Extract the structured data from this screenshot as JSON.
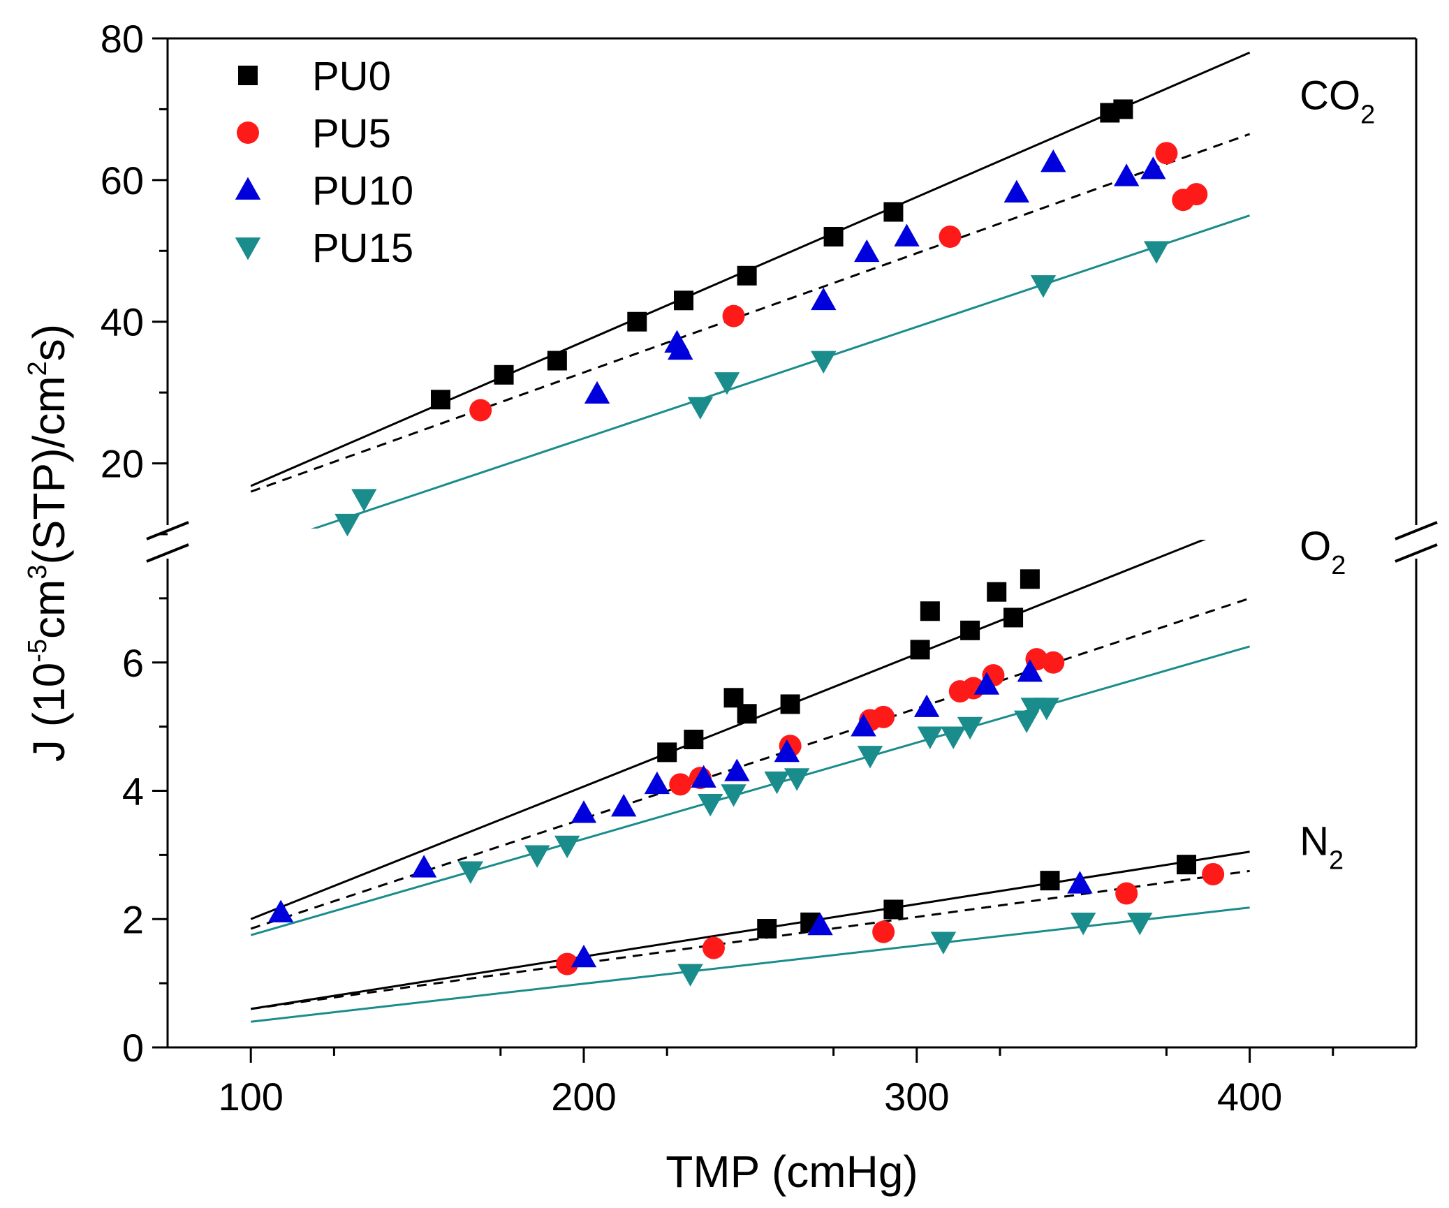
{
  "chart_data": {
    "type": "scatter",
    "title": "",
    "xlabel": "TMP (cmHg)",
    "ylabel": {
      "prefix": "J (10",
      "exp1": "-5",
      "mid1": "cm",
      "exp2": "3",
      "mid2": "(STP)/cm",
      "exp3": "2",
      "suffix": "s)"
    },
    "xlim": [
      75,
      450
    ],
    "xticks": [
      100,
      200,
      300,
      400
    ],
    "xtick_labels": [
      "100",
      "200",
      "300",
      "400"
    ],
    "broken_axis": true,
    "lower_ylim": [
      0,
      8
    ],
    "lower_yticks": [
      0,
      2,
      4,
      6
    ],
    "lower_ytick_labels": [
      "0",
      "2",
      "4",
      "6"
    ],
    "upper_ylim": [
      10,
      80
    ],
    "upper_yticks": [
      20,
      40,
      60,
      80
    ],
    "upper_ytick_labels": [
      "20",
      "40",
      "60",
      "80"
    ],
    "legend_position": "top-left",
    "gas_labels": [
      {
        "text": "CO",
        "sub": "2",
        "panel": "upper",
        "x": 415,
        "y": 70
      },
      {
        "text": "O",
        "sub": "2",
        "panel": "lower",
        "x": 415,
        "y": 7.6
      },
      {
        "text": "N",
        "sub": "2",
        "panel": "lower",
        "x": 415,
        "y": 3.0
      }
    ],
    "series": [
      {
        "name": "PU0",
        "marker": "square",
        "color": "#000000",
        "points": {
          "CO2": [
            [
              157,
              29
            ],
            [
              176,
              32.5
            ],
            [
              192,
              34.5
            ],
            [
              216,
              40
            ],
            [
              230,
              43
            ],
            [
              249,
              46.5
            ],
            [
              275,
              52
            ],
            [
              293,
              55.5
            ],
            [
              358,
              69.5
            ],
            [
              362,
              70
            ]
          ],
          "O2": [
            [
              225,
              4.6
            ],
            [
              233,
              4.8
            ],
            [
              245,
              5.45
            ],
            [
              249,
              5.2
            ],
            [
              262,
              5.35
            ],
            [
              301,
              6.2
            ],
            [
              304,
              6.8
            ],
            [
              316,
              6.5
            ],
            [
              324,
              7.1
            ],
            [
              329,
              6.7
            ],
            [
              334,
              7.3
            ]
          ],
          "N2": [
            [
              255,
              1.85
            ],
            [
              268,
              1.95
            ],
            [
              293,
              2.15
            ],
            [
              340,
              2.6
            ],
            [
              381,
              2.85
            ]
          ]
        }
      },
      {
        "name": "PU5",
        "marker": "circle",
        "color": "#ff1a1a",
        "points": {
          "CO2": [
            [
              169,
              27.5
            ],
            [
              245,
              40.8
            ],
            [
              310,
              52
            ],
            [
              375,
              63.8
            ],
            [
              380,
              57.2
            ],
            [
              384,
              58
            ]
          ],
          "O2": [
            [
              229,
              4.1
            ],
            [
              235,
              4.2
            ],
            [
              262,
              4.7
            ],
            [
              286,
              5.1
            ],
            [
              290,
              5.15
            ],
            [
              313,
              5.55
            ],
            [
              317,
              5.6
            ],
            [
              323,
              5.8
            ],
            [
              336,
              6.05
            ],
            [
              341,
              6.0
            ]
          ],
          "N2": [
            [
              195,
              1.3
            ],
            [
              239,
              1.55
            ],
            [
              290,
              1.8
            ],
            [
              363,
              2.4
            ],
            [
              389,
              2.7
            ]
          ]
        }
      },
      {
        "name": "PU10",
        "marker": "triangle-up",
        "color": "#0000dd",
        "points": {
          "CO2": [
            [
              204,
              29.8
            ],
            [
              228,
              37
            ],
            [
              229,
              36
            ],
            [
              272,
              43
            ],
            [
              285,
              49.8
            ],
            [
              297,
              52
            ],
            [
              330,
              58.2
            ],
            [
              341,
              62.5
            ],
            [
              363,
              60.5
            ],
            [
              371,
              61.5
            ]
          ],
          "O2": [
            [
              109,
              2.1
            ],
            [
              152,
              2.8
            ],
            [
              200,
              3.65
            ],
            [
              212,
              3.75
            ],
            [
              222,
              4.1
            ],
            [
              236,
              4.2
            ],
            [
              246,
              4.3
            ],
            [
              261,
              4.6
            ],
            [
              284,
              5.0
            ],
            [
              303,
              5.3
            ],
            [
              321,
              5.65
            ],
            [
              334,
              5.85
            ]
          ],
          "N2": [
            [
              200,
              1.4
            ],
            [
              271,
              1.9
            ],
            [
              349,
              2.55
            ]
          ]
        }
      },
      {
        "name": "PU15",
        "marker": "triangle-down",
        "color": "#1a8c8c",
        "points": {
          "CO2": [
            [
              129,
              11.5
            ],
            [
              134,
              15
            ],
            [
              235,
              28
            ],
            [
              243,
              31.5
            ],
            [
              272,
              34.5
            ],
            [
              338,
              45.2
            ],
            [
              372,
              50
            ]
          ],
          "O2": [
            [
              166,
              2.75
            ],
            [
              186,
              3.0
            ],
            [
              195,
              3.15
            ],
            [
              238,
              3.8
            ],
            [
              245,
              3.95
            ],
            [
              264,
              4.2
            ],
            [
              258,
              4.15
            ],
            [
              286,
              4.55
            ],
            [
              304,
              4.85
            ],
            [
              311,
              4.85
            ],
            [
              316,
              5.0
            ],
            [
              333,
              5.1
            ],
            [
              335,
              5.3
            ],
            [
              339,
              5.3
            ]
          ],
          "N2": [
            [
              232,
              1.15
            ],
            [
              308,
              1.65
            ],
            [
              350,
              1.95
            ],
            [
              367,
              1.95
            ]
          ]
        }
      }
    ],
    "fit_lines": [
      {
        "series": "PU0",
        "gas": "CO2",
        "style": "solid",
        "color": "#000000",
        "x": [
          100,
          400
        ],
        "y": [
          16.8,
          78.0
        ]
      },
      {
        "series": "PU5",
        "gas": "CO2",
        "style": "dashed",
        "color": "#000000",
        "x": [
          100,
          400
        ],
        "y": [
          16.0,
          66.5
        ]
      },
      {
        "series": "PU15",
        "gas": "CO2",
        "style": "solid",
        "color": "#1a8c8c",
        "x": [
          100,
          400
        ],
        "y": [
          7.8,
          55.0
        ]
      },
      {
        "series": "PU0",
        "gas": "O2",
        "style": "solid",
        "color": "#000000",
        "x": [
          100,
          400
        ],
        "y": [
          2.0,
          8.2
        ]
      },
      {
        "series": "PU5",
        "gas": "O2",
        "style": "dashed",
        "color": "#000000",
        "x": [
          100,
          400
        ],
        "y": [
          1.85,
          7.0
        ]
      },
      {
        "series": "PU15",
        "gas": "O2",
        "style": "solid",
        "color": "#1a8c8c",
        "x": [
          100,
          400
        ],
        "y": [
          1.75,
          6.25
        ]
      },
      {
        "series": "PU0",
        "gas": "N2",
        "style": "solid",
        "color": "#000000",
        "x": [
          100,
          400
        ],
        "y": [
          0.6,
          3.05
        ]
      },
      {
        "series": "PU5",
        "gas": "N2",
        "style": "dashed",
        "color": "#000000",
        "x": [
          100,
          400
        ],
        "y": [
          0.6,
          2.75
        ]
      },
      {
        "series": "PU15",
        "gas": "N2",
        "style": "solid",
        "color": "#1a8c8c",
        "x": [
          100,
          400
        ],
        "y": [
          0.4,
          2.18
        ]
      }
    ]
  }
}
